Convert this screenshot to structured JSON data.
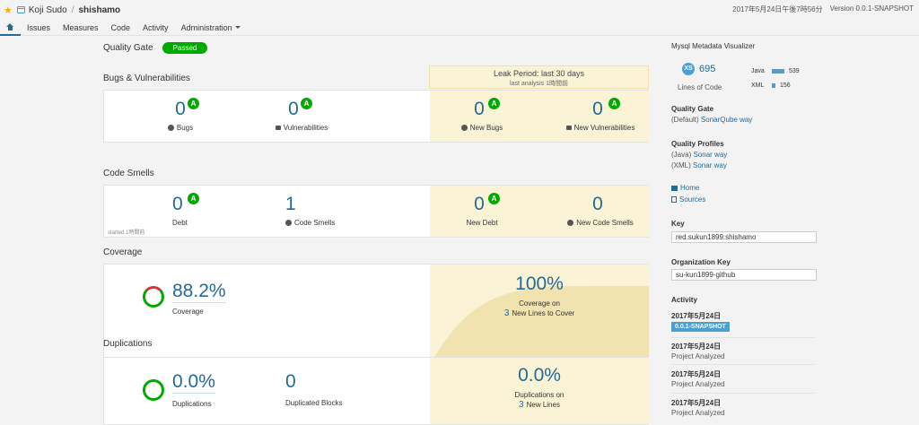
{
  "header": {
    "org": "Koji Sudo",
    "separator": "/",
    "project": "shishamo",
    "date": "2017年5月24日午後7時56分",
    "version": "Version 0.0.1-SNAPSHOT"
  },
  "tabs": [
    "Issues",
    "Measures",
    "Code",
    "Activity",
    "Administration"
  ],
  "quality_gate": {
    "title": "Quality Gate",
    "status": "Passed"
  },
  "leak_period": {
    "title": "Leak Period: last 30 days",
    "sub": "last analysis 1時間前"
  },
  "bugs": {
    "title": "Bugs & Vulnerabilities",
    "bugs": {
      "value": "0",
      "rating": "A",
      "label": "Bugs"
    },
    "vulns": {
      "value": "0",
      "rating": "A",
      "label": "Vulnerabilities"
    },
    "new_bugs": {
      "value": "0",
      "rating": "A",
      "label": "New Bugs"
    },
    "new_vulns": {
      "value": "0",
      "rating": "A",
      "label": "New Vulnerabilities"
    }
  },
  "smells": {
    "title": "Code Smells",
    "debt": {
      "value": "0",
      "rating": "A",
      "label": "Debt"
    },
    "smells": {
      "value": "1",
      "label": "Code Smells"
    },
    "new_debt": {
      "value": "0",
      "rating": "A",
      "label": "New Debt"
    },
    "new_smells": {
      "value": "0",
      "label": "New Code Smells"
    },
    "started": "started 1時間前"
  },
  "coverage": {
    "title": "Coverage",
    "value": "88.2%",
    "label": "Coverage",
    "new_value": "100%",
    "new_label_1": "Coverage on",
    "new_lines": "3",
    "new_label_2": "New Lines to Cover"
  },
  "duplications": {
    "title": "Duplications",
    "value": "0.0%",
    "label": "Duplications",
    "blocks_value": "0",
    "blocks_label": "Duplicated Blocks",
    "new_value": "0.0%",
    "new_label_1": "Duplications on",
    "new_lines": "3",
    "new_label_2": "New Lines"
  },
  "side": {
    "project_name": "Mysql Metadata Visualizer",
    "size_badge": "XS",
    "loc": "695",
    "loc_label": "Lines of Code",
    "langs": [
      {
        "name": "Java",
        "value": "539",
        "fraction": 0.78
      },
      {
        "name": "XML",
        "value": "156",
        "fraction": 0.22
      }
    ],
    "qg_title": "Quality Gate",
    "qg_default": "(Default)",
    "qg_name": "SonarQube way",
    "qp_title": "Quality Profiles",
    "qp": [
      {
        "lang": "(Java)",
        "name": "Sonar way"
      },
      {
        "lang": "(XML)",
        "name": "Sonar way"
      }
    ],
    "links": [
      "Home",
      "Sources"
    ],
    "key_title": "Key",
    "key": "red.sukun1899:shishamo",
    "org_key_title": "Organization Key",
    "org_key": "su-kun1899-github",
    "activity_title": "Activity",
    "activity": [
      {
        "date": "2017年5月24日",
        "tag": "0.0.1-SNAPSHOT"
      },
      {
        "date": "2017年5月24日",
        "event": "Project Analyzed"
      },
      {
        "date": "2017年5月24日",
        "event": "Project Analyzed"
      },
      {
        "date": "2017年5月24日",
        "event": "Project Analyzed"
      }
    ]
  },
  "colors": {
    "accent": "#236a97",
    "passed": "#00aa00",
    "leak_bg": "#fbf3d5",
    "badge": "#4b9fd5"
  }
}
